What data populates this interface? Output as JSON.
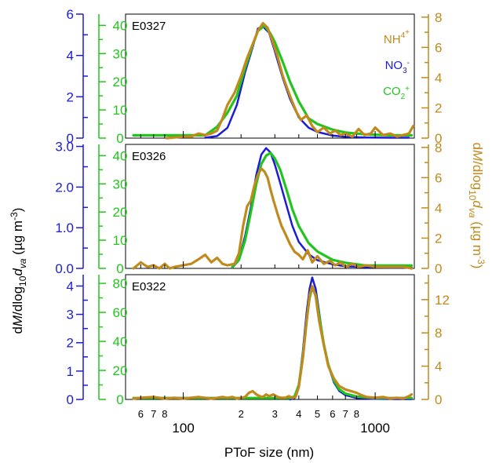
{
  "chart_data": {
    "type": "line",
    "xlabel": "PToF size (nm)",
    "x_scale": "log",
    "xlim": [
      50,
      1600
    ],
    "x_major_ticks": [
      100,
      1000
    ],
    "x_major_labels": [
      "100",
      "1000"
    ],
    "x_minor_ticks": [
      60,
      70,
      80,
      200,
      300,
      400,
      500,
      600,
      700,
      800
    ],
    "x_minor_labels": [
      "6",
      "7",
      "8",
      "2",
      "3",
      "4",
      "5",
      "6",
      "7",
      "8"
    ],
    "ylabel_left": "dM/dlog10dva (µg m-3)",
    "ylabel_right": "dM/dlog10dva (µg m-3)",
    "legend": [
      {
        "html": "NH<tspan dy='-7' font-size='10'>4</tspan><tspan dy='-4' font-size='10'>+</tspan>",
        "color": "#c08a1c"
      },
      {
        "html": "NO<tspan dy='5' font-size='10'>3</tspan><tspan dy='-10' font-size='10'>-</tspan>",
        "color": "#1c1cd8"
      },
      {
        "html": "CO<tspan dy='5' font-size='10'>2</tspan><tspan dy='-10' font-size='10'>+</tspan>",
        "color": "#22c51e"
      }
    ],
    "colors": {
      "nh4": "#c08a1c",
      "no3": "#1c1cd8",
      "co2": "#22c51e"
    },
    "panels": [
      {
        "label": "E0327",
        "blue_axis": {
          "ylim": [
            0,
            6
          ],
          "ticks": [
            0,
            2,
            4,
            6
          ],
          "labels": [
            "0",
            "2",
            "4",
            "6"
          ]
        },
        "green_axis": {
          "ylim": [
            0,
            44
          ],
          "ticks": [
            0,
            10,
            20,
            30,
            40
          ],
          "labels": [
            "0",
            "10",
            "20",
            "30",
            "40"
          ]
        },
        "right_axis": {
          "ylim": [
            0,
            8.2
          ],
          "ticks": [
            0,
            2,
            4,
            6,
            8
          ],
          "labels": [
            "0",
            "2",
            "4",
            "6",
            "8"
          ]
        },
        "series": [
          {
            "name": "NO3",
            "color_key": "no3",
            "axis": "blue",
            "x": [
              130,
              150,
              170,
              190,
              210,
              230,
              245,
              260,
              280,
              300,
              330,
              360,
              400,
              450,
              500,
              600,
              700,
              900,
              1200,
              1500
            ],
            "y": [
              0.02,
              0.1,
              0.5,
              1.6,
              3.2,
              4.4,
              5.3,
              5.4,
              5.1,
              4.2,
              2.9,
              1.9,
              1.0,
              0.5,
              0.3,
              0.12,
              0.06,
              0.03,
              0.02,
              0.02
            ]
          },
          {
            "name": "CO2",
            "color_key": "co2",
            "axis": "green",
            "x": [
              55,
              65,
              75,
              130,
              150,
              170,
              190,
              210,
              230,
              245,
              265,
              285,
              300,
              330,
              360,
              400,
              450,
              500,
              600,
              700,
              900,
              1200,
              1550
            ],
            "y": [
              1,
              1,
              1,
              1,
              4,
              9,
              15,
              25,
              33,
              38,
              40,
              37,
              34,
              27,
              20,
              13,
              7,
              5,
              3,
              2,
              1.3,
              1,
              1
            ]
          },
          {
            "name": "NH4",
            "color_key": "nh4",
            "axis": "right",
            "x": [
              82,
              100,
              110,
              120,
              130,
              140,
              150,
              160,
              170,
              185,
              200,
              215,
              230,
              245,
              260,
              275,
              290,
              310,
              330,
              350,
              370,
              390,
              410,
              440,
              470,
              500,
              540,
              580,
              620,
              660,
              700,
              760,
              820,
              880,
              950,
              1000,
              1100,
              1200,
              1300,
              1400,
              1500,
              1580
            ],
            "y": [
              0,
              0.1,
              0.1,
              0.3,
              0.2,
              0.3,
              0.5,
              1.3,
              2.2,
              3.0,
              4.1,
              5.3,
              6.2,
              7.1,
              7.6,
              7.3,
              6.5,
              5.4,
              4.1,
              3.2,
              2.4,
              1.7,
              1.2,
              1.5,
              0.8,
              0.4,
              0.7,
              0.3,
              0.5,
              0.2,
              0.3,
              0.1,
              0.6,
              0.2,
              0.3,
              0.7,
              0.2,
              0.3,
              0.1,
              0.2,
              0.3,
              0.8
            ]
          }
        ]
      },
      {
        "label": "E0326",
        "blue_axis": {
          "ylim": [
            0,
            3.05
          ],
          "ticks": [
            0,
            1,
            2,
            3
          ],
          "labels": [
            "0.0",
            "1.0",
            "2.0",
            "3.0"
          ]
        },
        "green_axis": {
          "ylim": [
            0,
            44
          ],
          "ticks": [
            0,
            10,
            20,
            30,
            40
          ],
          "labels": [
            "0",
            "10",
            "20",
            "30",
            "40"
          ]
        },
        "right_axis": {
          "ylim": [
            0,
            8.2
          ],
          "ticks": [
            0,
            2,
            4,
            6,
            8
          ],
          "labels": [
            "0",
            "2",
            "4",
            "6",
            "8"
          ]
        },
        "series": [
          {
            "name": "NO3",
            "color_key": "no3",
            "axis": "blue",
            "x": [
              180,
              195,
              210,
              225,
              240,
              255,
              270,
              285,
              300,
              320,
              345,
              370,
              400,
              450,
              500,
              600,
              700,
              900,
              1200,
              1550
            ],
            "y": [
              0.02,
              0.2,
              0.8,
              1.5,
              2.3,
              2.8,
              2.96,
              2.85,
              2.55,
              2.1,
              1.55,
              1.05,
              0.65,
              0.35,
              0.2,
              0.1,
              0.05,
              0.03,
              0.02,
              0.02
            ]
          },
          {
            "name": "CO2",
            "color_key": "co2",
            "axis": "green",
            "x": [
              180,
              195,
              210,
              225,
              240,
              255,
              270,
              285,
              300,
              320,
              345,
              370,
              400,
              450,
              500,
              600,
              700,
              900,
              1200,
              1550
            ],
            "y": [
              0.5,
              3,
              10,
              20,
              30,
              37,
              40,
              41,
              39,
              35,
              28,
              21,
              15,
              9,
              6,
              3,
              2,
              1,
              1,
              1
            ]
          },
          {
            "name": "NH4",
            "color_key": "nh4",
            "axis": "right",
            "x": [
              55,
              60,
              65,
              70,
              75,
              80,
              85,
              90,
              100,
              110,
              120,
              130,
              140,
              150,
              160,
              170,
              185,
              195,
              205,
              215,
              225,
              235,
              245,
              255,
              265,
              275,
              285,
              295,
              310,
              325,
              340,
              360,
              380,
              400,
              420,
              445,
              470,
              500,
              540,
              580,
              620,
              660,
              700,
              760,
              820,
              900,
              1000,
              1100,
              1200,
              1300,
              1400,
              1550
            ],
            "y": [
              0,
              0.4,
              0.1,
              0.2,
              0,
              0.3,
              0,
              0.1,
              0.2,
              0.3,
              0.6,
              0.9,
              0.4,
              0.7,
              0.3,
              0.2,
              0.3,
              1.0,
              2.8,
              4.1,
              4.5,
              5.5,
              6.2,
              6.6,
              6.4,
              6.0,
              5.2,
              4.5,
              3.6,
              2.8,
              2.3,
              1.6,
              1.1,
              0.9,
              0.6,
              1.2,
              0.4,
              0.8,
              0.3,
              0.5,
              0.2,
              0.4,
              0.1,
              0.3,
              0.1,
              0.2,
              0.1,
              0.1,
              0.1,
              0.1,
              0.1,
              0
            ]
          }
        ]
      },
      {
        "label": "E0322",
        "blue_axis": {
          "ylim": [
            0,
            4.4
          ],
          "ticks": [
            0,
            1,
            2,
            3,
            4
          ],
          "labels": [
            "0",
            "1",
            "2",
            "3",
            "4"
          ]
        },
        "green_axis": {
          "ylim": [
            0,
            86
          ],
          "ticks": [
            0,
            20,
            40,
            60,
            80
          ],
          "labels": [
            "0",
            "20",
            "40",
            "60",
            "80"
          ]
        },
        "right_axis": {
          "ylim": [
            0,
            15
          ],
          "ticks": [
            0,
            4,
            8,
            12
          ],
          "labels": [
            "0",
            "4",
            "8",
            "12"
          ]
        },
        "series": [
          {
            "name": "NO3",
            "color_key": "no3",
            "axis": "blue",
            "x": [
              360,
              380,
              400,
              420,
              440,
              455,
              470,
              490,
              510,
              540,
              570,
              610,
              650,
              700,
              800,
              1000,
              1300,
              1550
            ],
            "y": [
              0,
              0.05,
              0.5,
              1.7,
              3.1,
              3.9,
              4.3,
              3.9,
              3.1,
              1.9,
              1.2,
              0.6,
              0.3,
              0.15,
              0.05,
              0.02,
              0.01,
              0.01
            ]
          },
          {
            "name": "CO2",
            "color_key": "co2",
            "axis": "green",
            "x": [
              55,
              100,
              200,
              360,
              380,
              400,
              420,
              440,
              455,
              470,
              490,
              510,
              540,
              570,
              610,
              650,
              700,
              800,
              1000,
              1300,
              1550
            ],
            "y": [
              1,
              1,
              1,
              1,
              2,
              10,
              30,
              55,
              70,
              77,
              72,
              58,
              38,
              24,
              13,
              7,
              4,
              2,
              1,
              1,
              1
            ]
          },
          {
            "name": "NH4",
            "color_key": "nh4",
            "axis": "right",
            "x": [
              55,
              60,
              70,
              80,
              90,
              100,
              110,
              120,
              130,
              140,
              150,
              160,
              170,
              180,
              190,
              200,
              210,
              220,
              230,
              240,
              250,
              260,
              270,
              280,
              295,
              310,
              325,
              340,
              355,
              370,
              385,
              400,
              420,
              440,
              455,
              470,
              490,
              510,
              540,
              570,
              610,
              650,
              700,
              750,
              800,
              850,
              900,
              1000,
              1100,
              1200,
              1300,
              1400,
              1500,
              1550
            ],
            "y": [
              0.1,
              0.2,
              0.3,
              0.1,
              0.2,
              0.1,
              0.2,
              0.3,
              0.2,
              0.1,
              0.2,
              0.3,
              0.2,
              0.3,
              0.1,
              0.2,
              0.3,
              0.8,
              1.0,
              0.6,
              0.4,
              0.3,
              0.6,
              0.4,
              0.6,
              0.3,
              0.2,
              0.2,
              0.4,
              0.2,
              0.3,
              1.5,
              5.0,
              9.5,
              12.5,
              13.6,
              12.4,
              9.5,
              6.5,
              4.0,
              2.5,
              1.6,
              1.2,
              1.0,
              0.8,
              0.5,
              0.3,
              0.2,
              0.3,
              0.1,
              0.2,
              0.1,
              0.4,
              0.6
            ]
          }
        ]
      }
    ]
  }
}
